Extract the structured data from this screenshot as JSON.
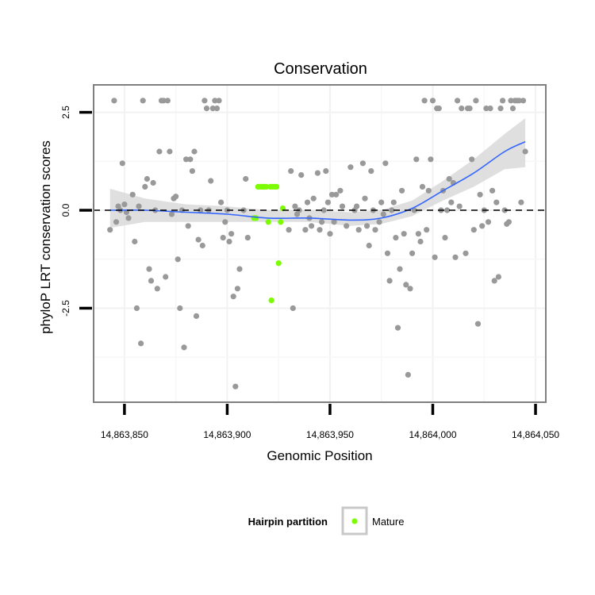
{
  "chart_data": {
    "type": "scatter",
    "title": "Conservation",
    "xlabel": "Genomic Position",
    "ylabel": "phyloP LRT conservation scores",
    "xlim": [
      14863835,
      14864055
    ],
    "ylim": [
      -4.9,
      3.2
    ],
    "x_ticks": [
      14863850,
      14863900,
      14863950,
      14864000,
      14864050
    ],
    "x_tick_labels": [
      "14,863,850",
      "14,863,900",
      "14,863,950",
      "14,864,000",
      "14,864,050"
    ],
    "y_ticks": [
      -2.5,
      0.0,
      2.5
    ],
    "y_tick_labels": [
      "-2.5",
      "0.0",
      "2.5"
    ],
    "grid": true,
    "reference_line": {
      "y": 0,
      "style": "dashed",
      "color": "#000000"
    },
    "legend": {
      "title": "Hairpin partition",
      "position": "bottom",
      "entries": [
        {
          "label": "Mature",
          "color": "#7cfc00"
        }
      ]
    },
    "colors": {
      "other": "#999999",
      "mature": "#7cfc00",
      "smooth": "#3366ff",
      "ribbon": "#d9d9d9"
    },
    "series": [
      {
        "color": "#999999",
        "points": [
          [
            14863843,
            -0.5
          ],
          [
            14863845,
            2.8
          ],
          [
            14863846,
            -0.3
          ],
          [
            14863847,
            0.1
          ],
          [
            14863848,
            0.0
          ],
          [
            14863849,
            1.2
          ],
          [
            14863850,
            0.15
          ],
          [
            14863851,
            -0.05
          ],
          [
            14863852,
            -0.2
          ],
          [
            14863854,
            0.4
          ],
          [
            14863855,
            -0.8
          ],
          [
            14863856,
            -2.5
          ],
          [
            14863857,
            0.1
          ],
          [
            14863858,
            -3.4
          ],
          [
            14863859,
            2.8
          ],
          [
            14863860,
            0.6
          ],
          [
            14863861,
            0.8
          ],
          [
            14863862,
            -1.5
          ],
          [
            14863863,
            -1.8
          ],
          [
            14863864,
            0.7
          ],
          [
            14863865,
            0.0
          ],
          [
            14863866,
            -2.0
          ],
          [
            14863867,
            1.5
          ],
          [
            14863868,
            2.8
          ],
          [
            14863869,
            2.8
          ],
          [
            14863870,
            -1.7
          ],
          [
            14863871,
            2.8
          ],
          [
            14863872,
            1.5
          ],
          [
            14863873,
            -0.1
          ],
          [
            14863874,
            0.3
          ],
          [
            14863875,
            0.35
          ],
          [
            14863876,
            -1.25
          ],
          [
            14863877,
            -2.5
          ],
          [
            14863878,
            0.0
          ],
          [
            14863879,
            -3.5
          ],
          [
            14863880,
            1.3
          ],
          [
            14863881,
            -0.4
          ],
          [
            14863882,
            1.3
          ],
          [
            14863883,
            1.0
          ],
          [
            14863884,
            1.5
          ],
          [
            14863885,
            -2.7
          ],
          [
            14863886,
            -0.75
          ],
          [
            14863887,
            0.0
          ],
          [
            14863888,
            -0.9
          ],
          [
            14863889,
            2.8
          ],
          [
            14863890,
            2.6
          ],
          [
            14863891,
            0.0
          ],
          [
            14863892,
            0.75
          ],
          [
            14863893,
            2.6
          ],
          [
            14863894,
            2.8
          ],
          [
            14863895,
            2.6
          ],
          [
            14863896,
            2.8
          ],
          [
            14863897,
            0.2
          ],
          [
            14863898,
            -0.7
          ],
          [
            14863899,
            -0.3
          ],
          [
            14863900,
            0.0
          ],
          [
            14863901,
            -0.8
          ],
          [
            14863902,
            -0.6
          ],
          [
            14863903,
            -2.2
          ],
          [
            14863904,
            -4.5
          ],
          [
            14863905,
            -2.0
          ],
          [
            14863906,
            -1.5
          ],
          [
            14863908,
            0.0
          ],
          [
            14863909,
            0.8
          ],
          [
            14863910,
            -0.7
          ],
          [
            14863930,
            -0.5
          ],
          [
            14863931,
            1.0
          ],
          [
            14863932,
            -2.5
          ],
          [
            14863933,
            0.1
          ],
          [
            14863934,
            -0.1
          ],
          [
            14863935,
            0.0
          ],
          [
            14863936,
            0.9
          ],
          [
            14863938,
            -0.5
          ],
          [
            14863939,
            0.2
          ],
          [
            14863940,
            -0.2
          ],
          [
            14863941,
            -0.4
          ],
          [
            14863942,
            0.3
          ],
          [
            14863944,
            0.95
          ],
          [
            14863945,
            -0.5
          ],
          [
            14863946,
            -0.3
          ],
          [
            14863947,
            0.0
          ],
          [
            14863948,
            1.0
          ],
          [
            14863949,
            0.2
          ],
          [
            14863950,
            -0.6
          ],
          [
            14863951,
            0.4
          ],
          [
            14863952,
            -0.3
          ],
          [
            14863953,
            0.4
          ],
          [
            14863955,
            0.5
          ],
          [
            14863956,
            0.1
          ],
          [
            14863958,
            -0.4
          ],
          [
            14863960,
            1.1
          ],
          [
            14863962,
            0.0
          ],
          [
            14863963,
            0.1
          ],
          [
            14863964,
            -0.5
          ],
          [
            14863966,
            1.2
          ],
          [
            14863967,
            0.3
          ],
          [
            14863968,
            -0.4
          ],
          [
            14863969,
            -0.9
          ],
          [
            14863970,
            1.0
          ],
          [
            14863971,
            0.0
          ],
          [
            14863972,
            -0.5
          ],
          [
            14863974,
            -0.3
          ],
          [
            14863975,
            0.2
          ],
          [
            14863976,
            -0.1
          ],
          [
            14863977,
            1.2
          ],
          [
            14863978,
            -1.1
          ],
          [
            14863979,
            -1.8
          ],
          [
            14863980,
            0.0
          ],
          [
            14863981,
            0.2
          ],
          [
            14863982,
            -0.7
          ],
          [
            14863983,
            -3.0
          ],
          [
            14863984,
            -1.5
          ],
          [
            14863985,
            0.5
          ],
          [
            14863986,
            -0.6
          ],
          [
            14863987,
            -1.9
          ],
          [
            14863988,
            -4.2
          ],
          [
            14863989,
            -2.0
          ],
          [
            14863990,
            -1.1
          ],
          [
            14863991,
            0.0
          ],
          [
            14863992,
            1.3
          ],
          [
            14863993,
            -0.6
          ],
          [
            14863994,
            -0.8
          ],
          [
            14863995,
            0.6
          ],
          [
            14863996,
            2.8
          ],
          [
            14863997,
            -0.5
          ],
          [
            14863998,
            0.5
          ],
          [
            14863999,
            1.3
          ],
          [
            14864000,
            2.8
          ],
          [
            14864001,
            -1.2
          ],
          [
            14864002,
            2.6
          ],
          [
            14864003,
            2.6
          ],
          [
            14864004,
            0.0
          ],
          [
            14864005,
            0.5
          ],
          [
            14864006,
            -0.7
          ],
          [
            14864007,
            0.0
          ],
          [
            14864008,
            0.8
          ],
          [
            14864009,
            0.2
          ],
          [
            14864010,
            0.7
          ],
          [
            14864011,
            -1.2
          ],
          [
            14864012,
            2.8
          ],
          [
            14864013,
            0.1
          ],
          [
            14864014,
            2.6
          ],
          [
            14864016,
            -1.1
          ],
          [
            14864017,
            2.6
          ],
          [
            14864018,
            2.6
          ],
          [
            14864019,
            1.3
          ],
          [
            14864020,
            -0.5
          ],
          [
            14864021,
            2.8
          ],
          [
            14864022,
            -2.9
          ],
          [
            14864023,
            0.4
          ],
          [
            14864024,
            -0.4
          ],
          [
            14864025,
            0.0
          ],
          [
            14864026,
            2.6
          ],
          [
            14864027,
            -0.3
          ],
          [
            14864028,
            2.6
          ],
          [
            14864029,
            0.5
          ],
          [
            14864030,
            -1.8
          ],
          [
            14864031,
            0.2
          ],
          [
            14864032,
            -1.7
          ],
          [
            14864033,
            2.6
          ],
          [
            14864034,
            2.8
          ],
          [
            14864035,
            0.0
          ],
          [
            14864036,
            -0.35
          ],
          [
            14864037,
            -0.3
          ],
          [
            14864038,
            2.8
          ],
          [
            14864039,
            2.6
          ],
          [
            14864040,
            2.8
          ],
          [
            14864041,
            2.8
          ],
          [
            14864042,
            2.8
          ],
          [
            14864043,
            0.2
          ],
          [
            14864044,
            2.8
          ],
          [
            14864045,
            1.5
          ]
        ]
      },
      {
        "name": "Mature",
        "color": "#7cfc00",
        "points": [
          [
            14863913,
            -0.2
          ],
          [
            14863914,
            -0.2
          ],
          [
            14863915,
            0.6
          ],
          [
            14863916,
            0.6
          ],
          [
            14863917,
            0.6
          ],
          [
            14863918,
            0.6
          ],
          [
            14863919,
            0.6
          ],
          [
            14863920,
            -0.3
          ],
          [
            14863921,
            0.6
          ],
          [
            14863921.5,
            -2.3
          ],
          [
            14863922,
            0.6
          ],
          [
            14863923,
            0.6
          ],
          [
            14863924,
            0.6
          ],
          [
            14863925,
            -1.35
          ],
          [
            14863926,
            -0.3
          ],
          [
            14863927,
            0.05
          ]
        ]
      }
    ],
    "smooth": {
      "method": "loess",
      "color": "#3366ff",
      "x": [
        14863843,
        14863860,
        14863880,
        14863900,
        14863920,
        14863940,
        14863960,
        14863975,
        14863990,
        14864005,
        14864020,
        14864035,
        14864045
      ],
      "y": [
        0.0,
        0.0,
        -0.05,
        -0.1,
        -0.2,
        -0.2,
        -0.25,
        -0.2,
        0.05,
        0.5,
        0.95,
        1.5,
        1.75
      ],
      "ci_lower": [
        -0.45,
        -0.3,
        -0.3,
        -0.3,
        -0.3,
        -0.3,
        -0.4,
        -0.35,
        -0.15,
        0.25,
        0.6,
        1.05,
        1.1
      ],
      "ci_upper": [
        0.55,
        0.3,
        0.15,
        0.1,
        0.0,
        0.0,
        -0.05,
        0.0,
        0.25,
        0.75,
        1.3,
        1.95,
        2.35
      ]
    }
  }
}
